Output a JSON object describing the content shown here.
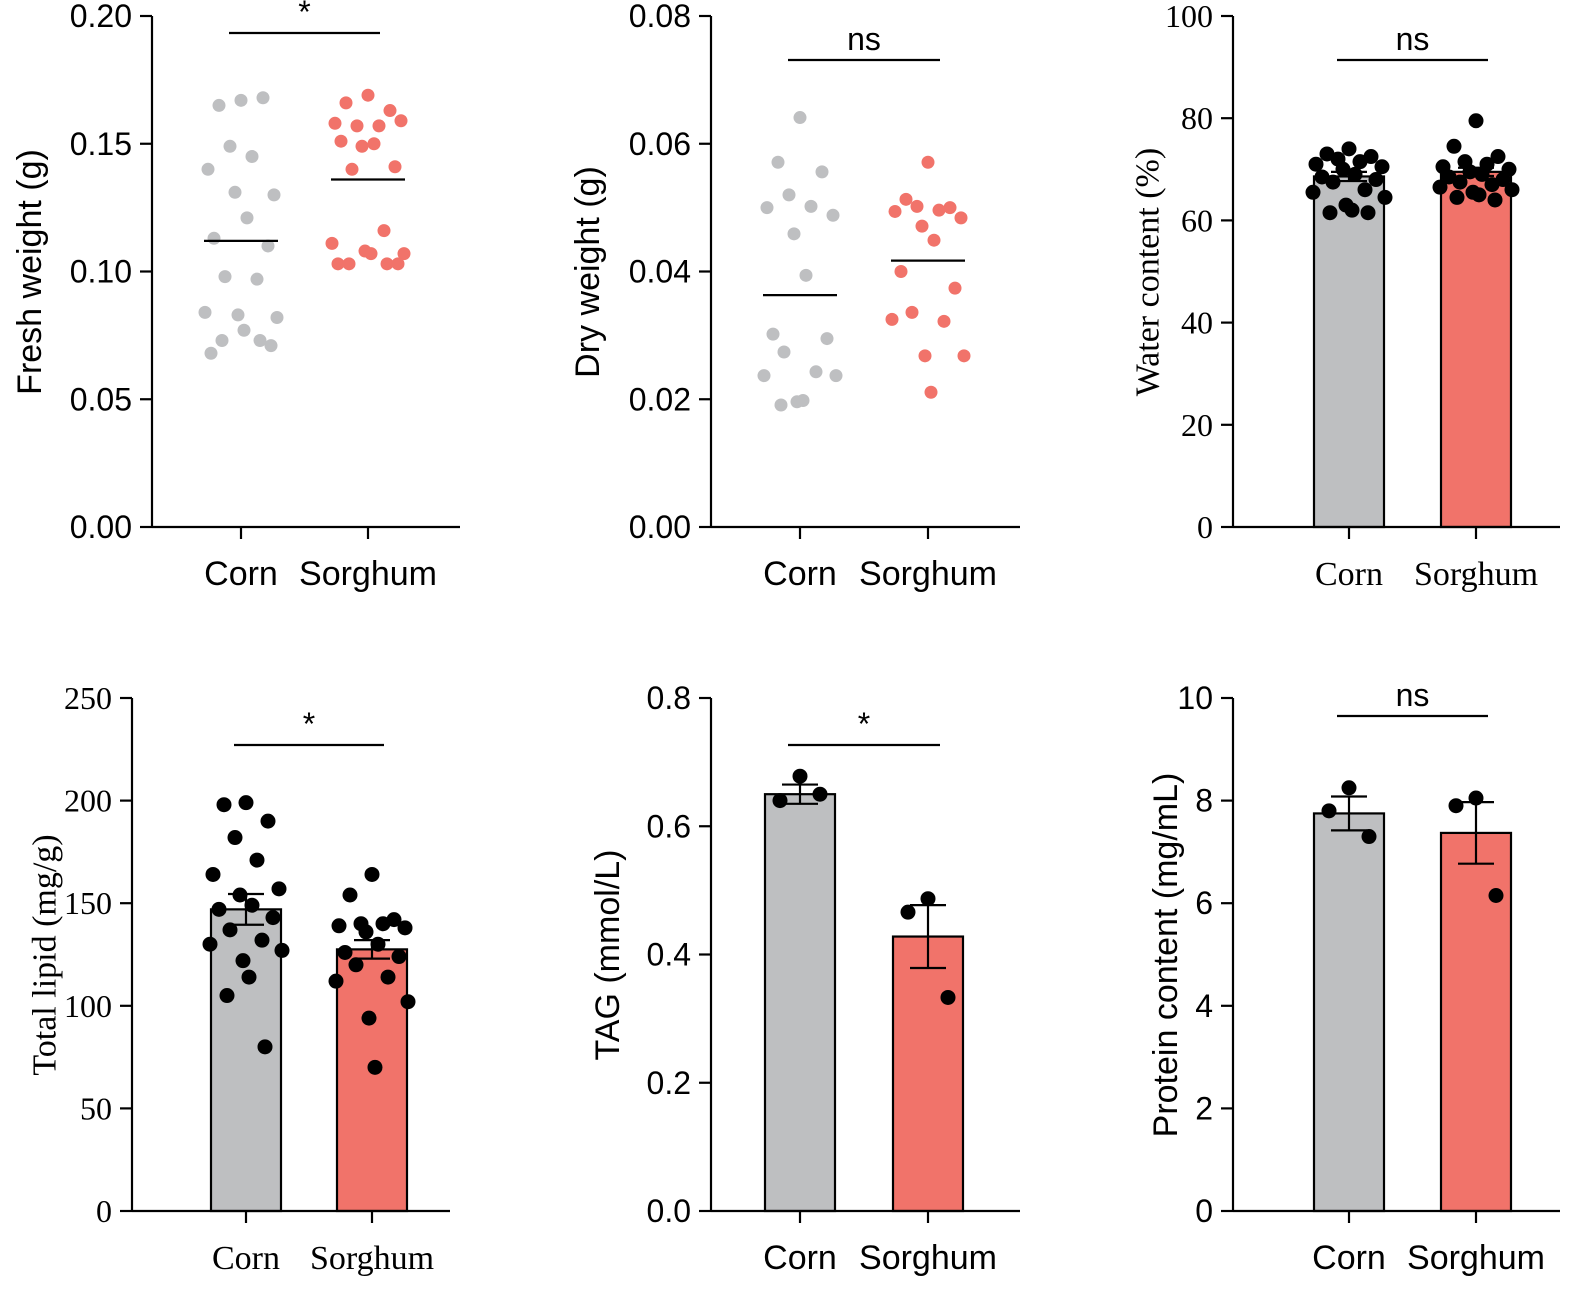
{
  "colors": {
    "corn": "#bebfc1",
    "sorghum": "#f1736a",
    "point_dark": "#000000"
  },
  "chart_data": [
    {
      "type": "scatter",
      "ylabel": "Fresh weight (g)",
      "categories": [
        "Corn",
        "Sorghum"
      ],
      "ylim": [
        0,
        0.2
      ],
      "yticks": [
        0.0,
        0.05,
        0.1,
        0.15,
        0.2
      ],
      "ytick_labels": [
        "0.00",
        "0.05",
        "0.10",
        "0.15",
        "0.20"
      ],
      "significance": "*",
      "series": [
        {
          "name": "Corn",
          "mean": 0.112,
          "points": [
            0.167,
            0.165,
            0.168,
            0.149,
            0.145,
            0.14,
            0.13,
            0.131,
            0.121,
            0.113,
            0.11,
            0.098,
            0.097,
            0.084,
            0.082,
            0.083,
            0.077,
            0.073,
            0.073,
            0.068,
            0.071
          ]
        },
        {
          "name": "Sorghum",
          "mean": 0.136,
          "points": [
            0.169,
            0.166,
            0.163,
            0.157,
            0.157,
            0.158,
            0.159,
            0.149,
            0.15,
            0.151,
            0.141,
            0.14,
            0.116,
            0.111,
            0.107,
            0.108,
            0.107,
            0.103,
            0.103,
            0.103,
            0.103
          ]
        }
      ]
    },
    {
      "type": "scatter",
      "ylabel": "Dry weight (g)",
      "categories": [
        "Corn",
        "Sorghum"
      ],
      "ylim": [
        0,
        0.08
      ],
      "yticks": [
        0.0,
        0.02,
        0.04,
        0.06,
        0.08
      ],
      "ytick_labels": [
        "0.00",
        "0.02",
        "0.04",
        "0.06",
        "0.08"
      ],
      "significance": "ns",
      "series": [
        {
          "name": "Corn",
          "mean": 0.0363,
          "points": [
            0.0641,
            0.0571,
            0.0556,
            0.052,
            0.0502,
            0.05,
            0.0488,
            0.0459,
            0.0394,
            0.0302,
            0.0295,
            0.0274,
            0.0243,
            0.0237,
            0.0237,
            0.0196,
            0.0198,
            0.0191
          ]
        },
        {
          "name": "Sorghum",
          "mean": 0.0417,
          "points": [
            0.0571,
            0.0513,
            0.05,
            0.0502,
            0.0496,
            0.0494,
            0.0484,
            0.0471,
            0.0449,
            0.04,
            0.0374,
            0.0336,
            0.0322,
            0.0325,
            0.0268,
            0.0268,
            0.0211
          ]
        }
      ]
    },
    {
      "type": "bar",
      "ylabel": "Water content (%)",
      "categories": [
        "Corn",
        "Sorghum"
      ],
      "ylim": [
        0,
        100
      ],
      "yticks": [
        0,
        20,
        40,
        60,
        80,
        100
      ],
      "ytick_labels": [
        "0",
        "20",
        "40",
        "60",
        "80",
        "100"
      ],
      "significance": "ns",
      "series": [
        {
          "name": "Corn",
          "value": 68.6,
          "sem": 0.9,
          "points": [
            74.0,
            73.0,
            72.5,
            72.0,
            71.5,
            71.0,
            70.5,
            70.0,
            69.0,
            68.5,
            68.0,
            67.5,
            66.0,
            65.5,
            64.5,
            63.0,
            62.0,
            61.5,
            61.5
          ]
        },
        {
          "name": "Sorghum",
          "value": 69.5,
          "sem": 0.8,
          "points": [
            79.5,
            74.5,
            72.5,
            71.5,
            71.0,
            70.5,
            70.0,
            69.5,
            69.0,
            68.5,
            68.0,
            67.5,
            67.0,
            66.5,
            66.0,
            65.5,
            65.0,
            64.5,
            64.0
          ]
        }
      ]
    },
    {
      "type": "bar",
      "ylabel": "Total lipid (mg/g)",
      "categories": [
        "Corn",
        "Sorghum"
      ],
      "ylim": [
        0,
        250
      ],
      "yticks": [
        0,
        50,
        100,
        150,
        200,
        250
      ],
      "ytick_labels": [
        "0",
        "50",
        "100",
        "150",
        "200",
        "250"
      ],
      "significance": "*",
      "series": [
        {
          "name": "Corn",
          "value": 147,
          "sem": 7.5,
          "points": [
            199,
            198,
            190,
            182,
            171,
            164,
            157,
            154,
            149,
            147,
            143,
            137,
            132,
            130,
            127,
            122,
            114,
            105,
            80
          ]
        },
        {
          "name": "Sorghum",
          "value": 127.5,
          "sem": 4.5,
          "points": [
            164,
            154,
            142,
            140,
            140,
            139,
            138,
            136,
            130,
            126,
            124,
            120,
            114,
            112,
            102,
            94,
            70
          ]
        }
      ]
    },
    {
      "type": "bar",
      "ylabel": "TAG (mmol/L)",
      "categories": [
        "Corn",
        "Sorghum"
      ],
      "ylim": [
        0,
        0.8
      ],
      "yticks": [
        0.0,
        0.2,
        0.4,
        0.6,
        0.8
      ],
      "ytick_labels": [
        "0.0",
        "0.2",
        "0.4",
        "0.6",
        "0.8"
      ],
      "significance": "*",
      "series": [
        {
          "name": "Corn",
          "value": 0.65,
          "sem": 0.015,
          "points": [
            0.678,
            0.64,
            0.65
          ]
        },
        {
          "name": "Sorghum",
          "value": 0.428,
          "sem": 0.049,
          "points": [
            0.487,
            0.466,
            0.333
          ]
        }
      ]
    },
    {
      "type": "bar",
      "ylabel": "Protein content (mg/mL)",
      "categories": [
        "Corn",
        "Sorghum"
      ],
      "ylim": [
        0,
        10
      ],
      "yticks": [
        0,
        2,
        4,
        6,
        8,
        10
      ],
      "ytick_labels": [
        "0",
        "2",
        "4",
        "6",
        "8",
        "10"
      ],
      "significance": "ns",
      "series": [
        {
          "name": "Corn",
          "value": 7.75,
          "sem": 0.33,
          "points": [
            8.25,
            7.8,
            7.3
          ]
        },
        {
          "name": "Sorghum",
          "value": 7.37,
          "sem": 0.6,
          "points": [
            8.05,
            7.9,
            6.15
          ]
        }
      ]
    }
  ]
}
